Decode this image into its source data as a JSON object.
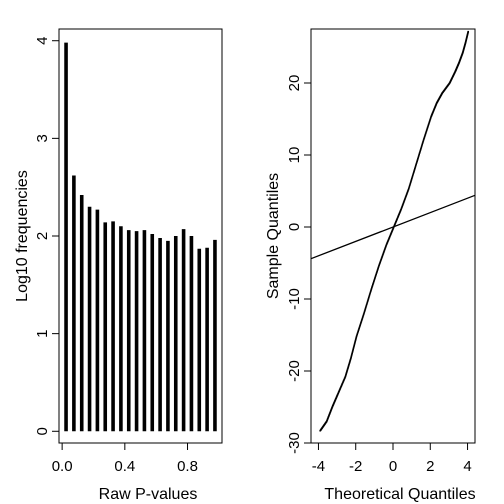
{
  "chart_data": [
    {
      "type": "bar",
      "xlabel": "Raw P-values",
      "ylabel": "Log10 frequencies",
      "xlim": [
        -0.02,
        1.02
      ],
      "ylim": [
        -0.12,
        4.12
      ],
      "xticks": [
        0.0,
        0.4,
        0.8
      ],
      "xtick_labels": [
        "0.0",
        "0.4",
        "0.8"
      ],
      "yticks": [
        0,
        1,
        2,
        3,
        4
      ],
      "ytick_labels": [
        "0",
        "1",
        "2",
        "3",
        "4"
      ],
      "x": [
        0.025,
        0.075,
        0.125,
        0.175,
        0.225,
        0.275,
        0.325,
        0.375,
        0.425,
        0.475,
        0.525,
        0.575,
        0.625,
        0.675,
        0.725,
        0.775,
        0.825,
        0.875,
        0.925,
        0.975
      ],
      "values": [
        3.98,
        2.62,
        2.42,
        2.3,
        2.27,
        2.14,
        2.15,
        2.1,
        2.06,
        2.05,
        2.06,
        2.02,
        1.98,
        1.95,
        2.0,
        2.07,
        2.0,
        1.87,
        1.88,
        1.96
      ]
    },
    {
      "type": "scatter",
      "xlabel": "Theoretical Quantiles",
      "ylabel": "Sample Quantiles",
      "xlim": [
        -4.4,
        4.4
      ],
      "ylim": [
        -30,
        27.5
      ],
      "xticks": [
        -4,
        -2,
        0,
        2,
        4
      ],
      "xtick_labels": [
        "-4",
        "-2",
        "0",
        "2",
        "4"
      ],
      "yticks": [
        -30,
        -20,
        -10,
        0,
        10,
        20
      ],
      "ytick_labels": [
        "-30",
        "-20",
        "-10",
        "0",
        "10",
        "20"
      ],
      "curve_points": [
        [
          -3.95,
          -28.3
        ],
        [
          -3.6,
          -27.0
        ],
        [
          -3.3,
          -25.0
        ],
        [
          -3.0,
          -23.2
        ],
        [
          -2.6,
          -20.8
        ],
        [
          -2.3,
          -18.2
        ],
        [
          -2.0,
          -15.2
        ],
        [
          -1.6,
          -12.0
        ],
        [
          -1.2,
          -8.6
        ],
        [
          -0.8,
          -5.4
        ],
        [
          -0.4,
          -2.5
        ],
        [
          0.0,
          0.0
        ],
        [
          0.4,
          2.5
        ],
        [
          0.8,
          5.3
        ],
        [
          1.2,
          8.7
        ],
        [
          1.6,
          12.1
        ],
        [
          2.0,
          15.3
        ],
        [
          2.3,
          17.2
        ],
        [
          2.6,
          18.6
        ],
        [
          3.0,
          20.0
        ],
        [
          3.3,
          21.6
        ],
        [
          3.5,
          22.8
        ],
        [
          3.7,
          24.2
        ],
        [
          3.85,
          25.6
        ],
        [
          4.0,
          27.2
        ]
      ],
      "ref_line": {
        "intercept": 0,
        "slope": 1.0
      }
    }
  ]
}
